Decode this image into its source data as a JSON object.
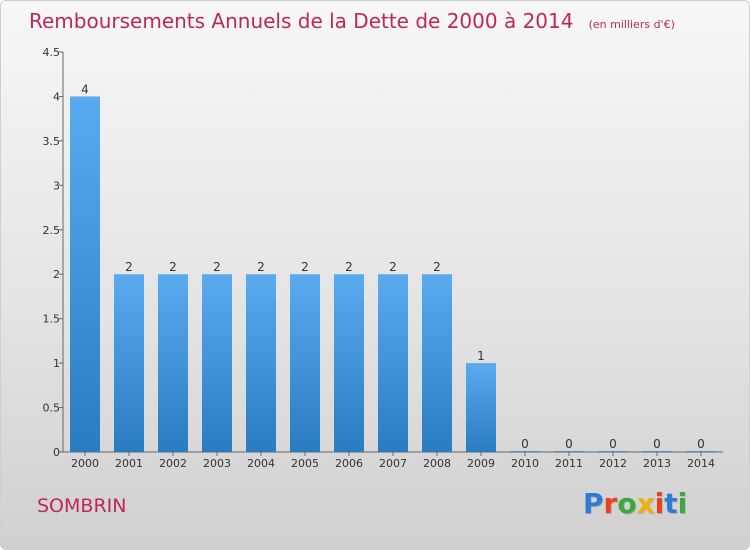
{
  "header": {
    "title": "Remboursements Annuels de la Dette de 2000 à 2014",
    "subtitle": "(en milliers d'€)"
  },
  "footer": {
    "commune": "SOMBRIN",
    "logo_text": "Proxiti",
    "logo_colors": [
      "#2e7bd6",
      "#e8411c",
      "#3aa83a",
      "#f2b00d",
      "#e8411c",
      "#2e7bd6",
      "#3aa83a"
    ]
  },
  "colors": {
    "bar_top": "#5aaaf0",
    "bar_bottom": "#2a7cc0",
    "title": "#c0265b"
  },
  "chart_data": {
    "type": "bar",
    "categories": [
      "2000",
      "2001",
      "2002",
      "2003",
      "2004",
      "2005",
      "2006",
      "2007",
      "2008",
      "2009",
      "2010",
      "2011",
      "2012",
      "2013",
      "2014"
    ],
    "values": [
      4,
      2,
      2,
      2,
      2,
      2,
      2,
      2,
      2,
      1,
      0,
      0,
      0,
      0,
      0
    ],
    "data_labels": [
      "4",
      "2",
      "2",
      "2",
      "2",
      "2",
      "2",
      "2",
      "2",
      "1",
      "0",
      "0",
      "0",
      "0",
      "0"
    ],
    "title": "Remboursements Annuels de la Dette de 2000 à 2014",
    "xlabel": "",
    "ylabel": "",
    "ylim": [
      0,
      4.5
    ],
    "yticks": [
      0,
      0.5,
      1,
      1.5,
      2,
      2.5,
      3,
      3.5,
      4,
      4.5
    ],
    "ytick_labels": [
      "0",
      "0.5",
      "1",
      "1.5",
      "2",
      "2.5",
      "3",
      "3.5",
      "4",
      "4.5"
    ],
    "grid": false,
    "legend": "none"
  }
}
